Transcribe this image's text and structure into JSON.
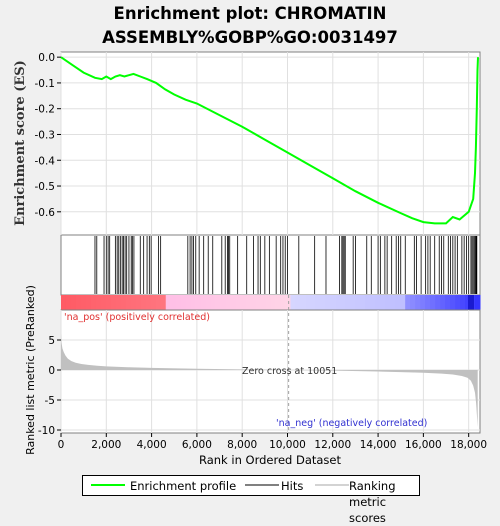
{
  "title": "Enrichment plot: CHROMATIN ASSEMBLY%GOBP%GO:0031497",
  "legend": {
    "items": [
      {
        "label": "Enrichment profile",
        "color": "#00ff00"
      },
      {
        "label": "Hits",
        "color": "#808080"
      },
      {
        "label": "Ranking metric scores",
        "color": "#d3d3d3"
      }
    ]
  },
  "annotations": {
    "pos_label": "'na_pos' (positively correlated)",
    "neg_label": "'na_neg' (negatively correlated)",
    "zero_cross": "Zero cross at 10051"
  },
  "chart_data": [
    {
      "type": "line",
      "panel": "enrichment-score",
      "ylabel": "Enrichment score (ES)",
      "xlim": [
        0,
        18500
      ],
      "ylim": [
        -0.69,
        0.02
      ],
      "yticks": [
        "0.0",
        "-0.1",
        "-0.2",
        "-0.3",
        "-0.4",
        "-0.5",
        "-0.6"
      ],
      "ytick_values": [
        0.0,
        -0.1,
        -0.2,
        -0.3,
        -0.4,
        -0.5,
        -0.6
      ],
      "line_color": "#00ff00",
      "series": [
        {
          "name": "Enrichment profile",
          "x": [
            0,
            500,
            1000,
            1500,
            1800,
            2000,
            2200,
            2400,
            2600,
            2800,
            3000,
            3200,
            3500,
            3800,
            4200,
            4600,
            5000,
            5500,
            6000,
            7000,
            8000,
            9000,
            10000,
            11000,
            12000,
            13000,
            14000,
            15000,
            15500,
            16000,
            16500,
            17000,
            17300,
            17600,
            18000,
            18200,
            18280,
            18320,
            18360,
            18390,
            18410
          ],
          "values": [
            0.0,
            -0.03,
            -0.06,
            -0.08,
            -0.085,
            -0.075,
            -0.085,
            -0.075,
            -0.07,
            -0.075,
            -0.07,
            -0.065,
            -0.075,
            -0.085,
            -0.1,
            -0.125,
            -0.145,
            -0.165,
            -0.18,
            -0.225,
            -0.27,
            -0.32,
            -0.37,
            -0.42,
            -0.47,
            -0.52,
            -0.565,
            -0.605,
            -0.625,
            -0.64,
            -0.645,
            -0.645,
            -0.62,
            -0.63,
            -0.6,
            -0.55,
            -0.45,
            -0.35,
            -0.2,
            -0.05,
            0.0
          ]
        }
      ]
    },
    {
      "type": "bar",
      "panel": "hits",
      "label": "Hits",
      "hit_ranks": [
        1500,
        1580,
        1900,
        2000,
        2080,
        2150,
        2400,
        2480,
        2550,
        2620,
        2700,
        2760,
        2830,
        2900,
        3000,
        3100,
        3150,
        3220,
        3500,
        3650,
        3800,
        3900,
        3980,
        4300,
        4400,
        5600,
        5700,
        5780,
        5850,
        5950,
        6100,
        6300,
        6500,
        6700,
        7100,
        7250,
        7350,
        7400,
        7450,
        7800,
        8200,
        8500,
        8700,
        8800,
        9000,
        9200,
        9500,
        9700,
        9800,
        9900,
        10000,
        10500,
        11200,
        11700,
        12300,
        12400,
        12450,
        12500,
        12550,
        12900,
        13000,
        13500,
        13700,
        14000,
        14100,
        14300,
        14400,
        14600,
        14800,
        14900,
        15000,
        15200,
        15600,
        15700,
        15900,
        16100,
        16200,
        16300,
        16500,
        16700,
        16800,
        16900,
        17100,
        17200,
        17300,
        17400,
        17500,
        17700,
        17800,
        17900,
        18000,
        18100,
        18150,
        18200,
        18250,
        18300,
        18330,
        18360
      ]
    },
    {
      "type": "area",
      "panel": "ranked-list-metric",
      "ylabel": "Ranked list metric (PreRanked)",
      "xlabel": "Rank in Ordered Dataset",
      "xlim": [
        0,
        18500
      ],
      "ylim": [
        -10.5,
        10
      ],
      "yticks": [
        "5",
        "0",
        "-5",
        "-10"
      ],
      "ytick_values": [
        5,
        0,
        -5,
        -10
      ],
      "xticks": [
        "0",
        "2,000",
        "4,000",
        "6,000",
        "8,000",
        "10,000",
        "12,000",
        "14,000",
        "16,000",
        "18,000"
      ],
      "xtick_values": [
        0,
        2000,
        4000,
        6000,
        8000,
        10000,
        12000,
        14000,
        16000,
        18000
      ],
      "zero_cross": 10051,
      "fill_color": "#c0c0c0",
      "series": [
        {
          "name": "Ranking metric scores",
          "x": [
            0,
            20,
            60,
            120,
            200,
            300,
            450,
            650,
            900,
            1200,
            1600,
            2000,
            3000,
            4000,
            6000,
            8000,
            10051,
            12000,
            14000,
            15000,
            16000,
            16800,
            17300,
            17700,
            17950,
            18100,
            18200,
            18280,
            18330,
            18370,
            18400
          ],
          "values": [
            6.0,
            4.6,
            3.6,
            3.0,
            2.4,
            1.9,
            1.5,
            1.2,
            1.0,
            0.85,
            0.7,
            0.6,
            0.45,
            0.35,
            0.2,
            0.1,
            0.0,
            -0.1,
            -0.25,
            -0.35,
            -0.45,
            -0.6,
            -0.75,
            -1.0,
            -1.3,
            -1.8,
            -2.6,
            -3.8,
            -5.5,
            -8.0,
            -9.5
          ]
        }
      ]
    }
  ]
}
